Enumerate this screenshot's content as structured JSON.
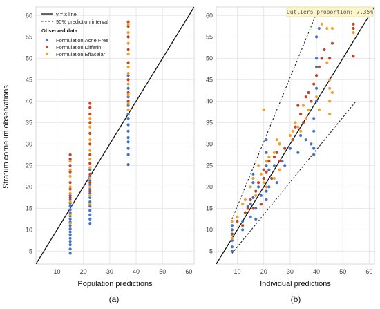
{
  "colors": {
    "acne_free": "#4472c4",
    "differin": "#c0462a",
    "effacalar": "#f0a030",
    "grid": "#e8e8e8",
    "line": "#111111",
    "outlier_box": "#fbf5c9"
  },
  "ylabel": "Stratum corneum observations",
  "chart_data": [
    {
      "type": "scatter",
      "caption": "(a)",
      "xlabel": "Population predictions",
      "xlim": [
        2,
        62
      ],
      "ylim": [
        2,
        62
      ],
      "xticks": [
        10,
        20,
        30,
        40,
        50,
        60
      ],
      "yticks": [
        5,
        10,
        15,
        20,
        25,
        30,
        35,
        40,
        45,
        50,
        55,
        60
      ],
      "grid": true,
      "legend_placement": "top-left",
      "legend": {
        "identity_line": "y = x line",
        "interval": "90% prediction interval",
        "group_title": "Observed data",
        "series_labels": [
          "Formulation:Acne Free",
          "Formulation:Differin",
          "Formulation:Effacalar"
        ]
      },
      "identity_line": true,
      "series": [
        {
          "name": "Formulation:Acne Free",
          "color_key": "acne_free",
          "points": [
            [
              15,
              4.5
            ],
            [
              15,
              5.5
            ],
            [
              15,
              6.5
            ],
            [
              15,
              7.3
            ],
            [
              15,
              8
            ],
            [
              15,
              8.8
            ],
            [
              15,
              9.5
            ],
            [
              15,
              10.2
            ],
            [
              15,
              11
            ],
            [
              15,
              11.8
            ],
            [
              15,
              12.5
            ],
            [
              15,
              13.2
            ],
            [
              15,
              14
            ],
            [
              15,
              14.7
            ],
            [
              15,
              15.5
            ],
            [
              15,
              16.2
            ],
            [
              15,
              17
            ],
            [
              15,
              18
            ],
            [
              22.5,
              11.5
            ],
            [
              22.5,
              12.5
            ],
            [
              22.5,
              13.5
            ],
            [
              22.5,
              14.5
            ],
            [
              22.5,
              15.5
            ],
            [
              22.5,
              16.5
            ],
            [
              22.5,
              17.5
            ],
            [
              22.5,
              18.5
            ],
            [
              22.5,
              19.5
            ],
            [
              22.5,
              20.5
            ],
            [
              22.5,
              21.5
            ],
            [
              22.5,
              22.5
            ],
            [
              22.5,
              24
            ],
            [
              37,
              25.2
            ],
            [
              37,
              27.5
            ],
            [
              37,
              29
            ],
            [
              37,
              30.5
            ],
            [
              37,
              31.5
            ],
            [
              37,
              33
            ],
            [
              37,
              34.5
            ],
            [
              37,
              36
            ],
            [
              37,
              37
            ],
            [
              37,
              39
            ],
            [
              37,
              41
            ],
            [
              37,
              43
            ],
            [
              37,
              46
            ]
          ]
        },
        {
          "name": "Formulation:Differin",
          "color_key": "differin",
          "points": [
            [
              15,
              27.5
            ],
            [
              15,
              26.5
            ],
            [
              15,
              25
            ],
            [
              15,
              23.5
            ],
            [
              15,
              21
            ],
            [
              15,
              19.5
            ],
            [
              15,
              17.5
            ],
            [
              22.5,
              39.5
            ],
            [
              22.5,
              38.5
            ],
            [
              22.5,
              37
            ],
            [
              22.5,
              35
            ],
            [
              22.5,
              32.5
            ],
            [
              22.5,
              30
            ],
            [
              22.5,
              27.5
            ],
            [
              22.5,
              25.5
            ],
            [
              22.5,
              23
            ],
            [
              22.5,
              21
            ],
            [
              22.5,
              19
            ],
            [
              37,
              58.5
            ],
            [
              37,
              57.5
            ],
            [
              37,
              55
            ],
            [
              37,
              52
            ],
            [
              37,
              49
            ],
            [
              37,
              45
            ],
            [
              37,
              42
            ],
            [
              37,
              40
            ]
          ]
        },
        {
          "name": "Formulation:Effacalar",
          "color_key": "effacalar",
          "points": [
            [
              15,
              26
            ],
            [
              15,
              24
            ],
            [
              15,
              22.5
            ],
            [
              15,
              20
            ],
            [
              15,
              18.5
            ],
            [
              15,
              16.5
            ],
            [
              15,
              13.5
            ],
            [
              15,
              11.5
            ],
            [
              22.5,
              36
            ],
            [
              22.5,
              34
            ],
            [
              22.5,
              31
            ],
            [
              22.5,
              28.5
            ],
            [
              22.5,
              26.5
            ],
            [
              22.5,
              24.5
            ],
            [
              22.5,
              22
            ],
            [
              22.5,
              20
            ],
            [
              22.5,
              18
            ],
            [
              22.5,
              16
            ],
            [
              37,
              58
            ],
            [
              37,
              56
            ],
            [
              37,
              53.5
            ],
            [
              37,
              51
            ],
            [
              37,
              48
            ],
            [
              37,
              46.5
            ],
            [
              37,
              44
            ],
            [
              37,
              41.5
            ],
            [
              37,
              39.5
            ],
            [
              37,
              38
            ]
          ]
        }
      ]
    },
    {
      "type": "scatter",
      "caption": "(b)",
      "xlabel": "Individual predictions",
      "xlim": [
        2,
        62
      ],
      "ylim": [
        2,
        62
      ],
      "xticks": [
        10,
        20,
        30,
        40,
        50,
        60
      ],
      "yticks": [
        5,
        10,
        15,
        20,
        25,
        30,
        35,
        40,
        45,
        50,
        55,
        60
      ],
      "grid": true,
      "outliers_label": "Outliers proportion: 7.35%",
      "identity_line": true,
      "interval_lines": [
        {
          "from": [
            8,
            12.5
          ],
          "to": [
            41,
            62
          ]
        },
        {
          "from": [
            8,
            4.5
          ],
          "to": [
            55,
            40
          ]
        }
      ],
      "series": [
        {
          "name": "Formulation:Acne Free",
          "color_key": "acne_free",
          "points": [
            [
              8,
              5
            ],
            [
              8,
              6
            ],
            [
              8,
              7.5
            ],
            [
              8,
              9
            ],
            [
              8,
              10
            ],
            [
              8,
              11
            ],
            [
              12,
              10
            ],
            [
              12,
              12
            ],
            [
              13,
              14
            ],
            [
              14,
              15.5
            ],
            [
              15,
              13
            ],
            [
              15,
              16
            ],
            [
              16,
              17.5
            ],
            [
              16,
              21
            ],
            [
              16,
              23
            ],
            [
              17,
              12.5
            ],
            [
              17,
              15
            ],
            [
              18,
              20
            ],
            [
              19,
              16
            ],
            [
              19,
              18
            ],
            [
              20,
              22
            ],
            [
              21,
              17
            ],
            [
              21,
              19
            ],
            [
              21,
              25
            ],
            [
              21,
              28
            ],
            [
              21,
              31
            ],
            [
              22,
              20
            ],
            [
              22,
              24
            ],
            [
              22,
              26
            ],
            [
              24,
              25
            ],
            [
              25,
              21
            ],
            [
              27,
              26
            ],
            [
              28,
              25
            ],
            [
              30,
              29
            ],
            [
              31,
              31
            ],
            [
              33,
              28
            ],
            [
              34,
              32
            ],
            [
              36,
              31
            ],
            [
              38,
              30
            ],
            [
              39,
              27.5
            ],
            [
              39,
              29
            ],
            [
              39,
              33
            ],
            [
              39,
              36
            ],
            [
              40,
              40
            ],
            [
              40,
              43
            ],
            [
              40,
              46
            ],
            [
              40,
              48
            ],
            [
              40,
              50
            ],
            [
              40,
              55
            ],
            [
              41,
              57
            ]
          ]
        },
        {
          "name": "Formulation:Differin",
          "color_key": "differin",
          "points": [
            [
              8,
              9
            ],
            [
              10,
              12
            ],
            [
              12,
              11
            ],
            [
              13,
              14
            ],
            [
              14,
              15
            ],
            [
              15,
              17
            ],
            [
              16,
              15
            ],
            [
              17,
              19
            ],
            [
              18,
              21
            ],
            [
              19,
              16
            ],
            [
              20,
              22
            ],
            [
              20,
              24
            ],
            [
              21,
              23.5
            ],
            [
              22,
              26
            ],
            [
              23,
              22
            ],
            [
              24,
              27
            ],
            [
              25,
              28
            ],
            [
              26,
              30
            ],
            [
              26,
              26
            ],
            [
              28,
              29
            ],
            [
              31,
              31
            ],
            [
              32,
              34
            ],
            [
              33,
              39
            ],
            [
              34,
              37
            ],
            [
              35,
              35
            ],
            [
              36,
              41
            ],
            [
              37,
              42
            ],
            [
              38,
              40
            ],
            [
              39,
              44
            ],
            [
              40,
              46
            ],
            [
              41,
              48
            ],
            [
              42,
              50
            ],
            [
              43,
              52
            ],
            [
              45,
              50
            ],
            [
              46,
              53.5
            ],
            [
              54,
              50.5
            ],
            [
              54,
              57
            ],
            [
              54,
              58
            ]
          ]
        },
        {
          "name": "Formulation:Effacalar",
          "color_key": "effacalar",
          "points": [
            [
              8,
              8
            ],
            [
              8,
              12
            ],
            [
              10,
              13
            ],
            [
              12,
              16
            ],
            [
              13,
              17
            ],
            [
              15,
              20
            ],
            [
              16,
              22
            ],
            [
              17,
              18
            ],
            [
              18,
              25
            ],
            [
              19,
              23
            ],
            [
              20,
              21
            ],
            [
              20,
              38
            ],
            [
              21,
              20
            ],
            [
              21,
              26
            ],
            [
              22,
              27
            ],
            [
              24,
              22
            ],
            [
              24,
              28
            ],
            [
              25,
              31
            ],
            [
              26,
              24
            ],
            [
              26,
              30
            ],
            [
              30,
              32
            ],
            [
              31,
              33
            ],
            [
              32,
              35
            ],
            [
              33,
              34
            ],
            [
              34,
              33
            ],
            [
              35,
              39
            ],
            [
              36,
              36
            ],
            [
              37,
              38
            ],
            [
              40,
              41
            ],
            [
              41,
              38
            ],
            [
              42,
              58
            ],
            [
              44,
              49
            ],
            [
              44,
              57
            ],
            [
              45,
              45
            ],
            [
              45,
              43
            ],
            [
              45,
              40
            ],
            [
              45,
              37
            ],
            [
              46,
              42
            ],
            [
              46,
              57
            ],
            [
              54,
              56
            ]
          ]
        }
      ]
    }
  ]
}
